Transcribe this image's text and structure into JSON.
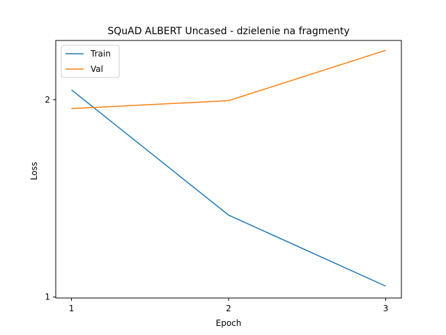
{
  "chart_data": {
    "type": "line",
    "title": "SQuAD ALBERT Uncased - dzielenie na fragmenty",
    "xlabel": "Epoch",
    "ylabel": "Loss",
    "x": [
      1,
      2,
      3
    ],
    "xticks": [
      1,
      2,
      3
    ],
    "yticks": [
      1,
      2
    ],
    "xlim": [
      0.9,
      3.1
    ],
    "ylim": [
      0.995,
      2.3
    ],
    "grid": false,
    "legend": "upper-left",
    "series": [
      {
        "name": "Train",
        "color": "#1f77b4",
        "values": [
          2.05,
          1.415,
          1.055
        ]
      },
      {
        "name": "Val",
        "color": "#ff7f0e",
        "values": [
          1.955,
          1.995,
          2.25
        ]
      }
    ]
  }
}
